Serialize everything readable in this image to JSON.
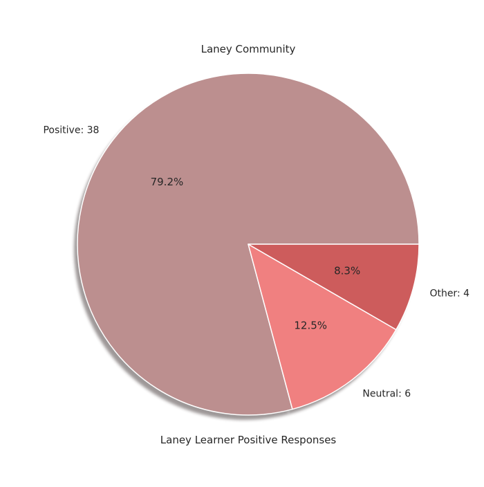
{
  "chart_data": {
    "type": "pie",
    "title": "Laney Community",
    "xlabel": "Laney Learner Positive Responses",
    "start_angle_deg": 0,
    "direction": "counterclockwise",
    "shadow": true,
    "slices": [
      {
        "label": "Positive: 38",
        "value": 38,
        "percent_label": "79.2%",
        "color": "#bc8f8f"
      },
      {
        "label": "Neutral: 6",
        "value": 6,
        "percent_label": "12.5%",
        "color": "#f08080"
      },
      {
        "label": "Other: 4",
        "value": 4,
        "percent_label": "8.3%",
        "color": "#cd5c5c"
      }
    ]
  }
}
